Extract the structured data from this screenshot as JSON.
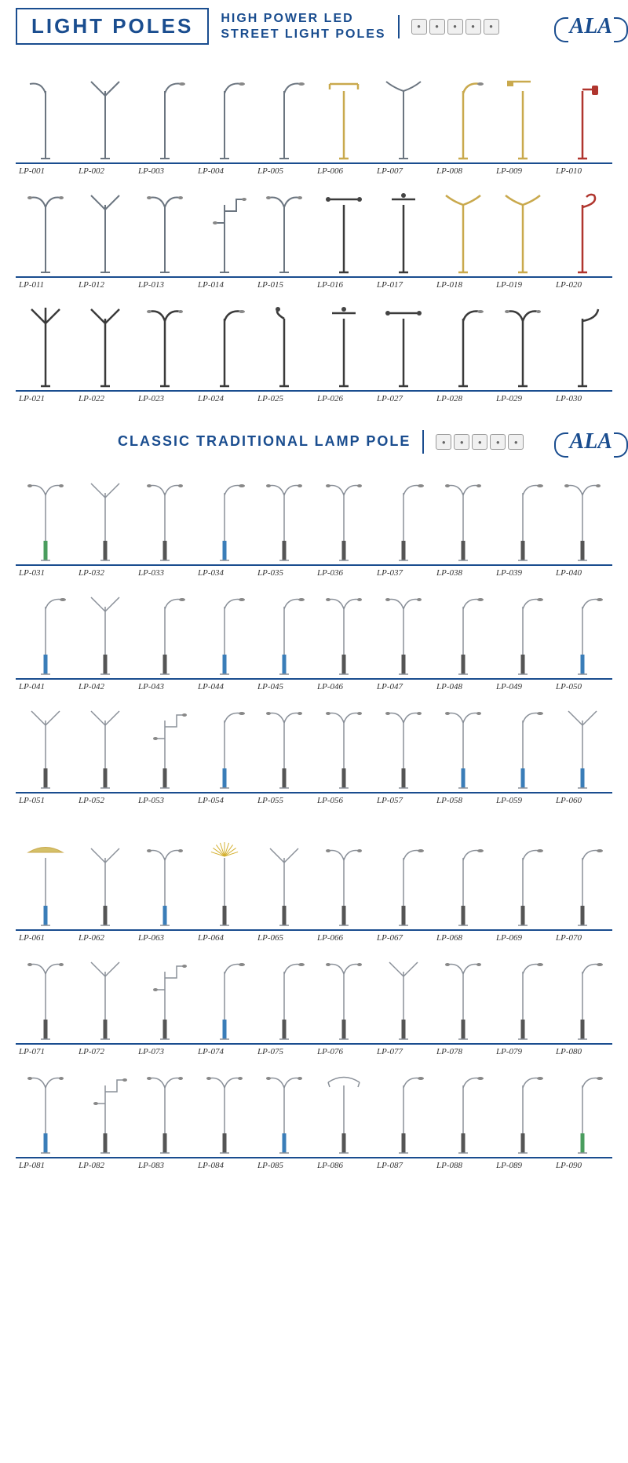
{
  "header": {
    "main_title": "LIGHT POLES",
    "subtitle_line1": "HIGH POWER LED",
    "subtitle_line2": "STREET LIGHT POLES",
    "logo_text": "ALA",
    "badge_count": 5
  },
  "section2": {
    "title": "CLASSIC TRADITIONAL LAMP POLE",
    "logo_text": "ALA",
    "badge_count": 5
  },
  "colors": {
    "primary": "#1a4d8f",
    "pole_grey": "#6b7580",
    "pole_gold": "#c9a94d",
    "pole_red": "#b0352e",
    "pole_dark": "#3a3a3a",
    "base_blue": "#3a7db8",
    "base_green": "#4a9d5e"
  },
  "section1_items": [
    {
      "id": "LP-001",
      "type": "single-curve-l",
      "color": "grey"
    },
    {
      "id": "LP-002",
      "type": "double-y",
      "color": "grey"
    },
    {
      "id": "LP-003",
      "type": "single-arc-r",
      "color": "grey"
    },
    {
      "id": "LP-004",
      "type": "single-arm-r",
      "color": "grey"
    },
    {
      "id": "LP-005",
      "type": "single-curve-r",
      "color": "grey"
    },
    {
      "id": "LP-006",
      "type": "cross-top",
      "color": "gold"
    },
    {
      "id": "LP-007",
      "type": "wing-top",
      "color": "grey"
    },
    {
      "id": "LP-008",
      "type": "single-arc-r",
      "color": "gold"
    },
    {
      "id": "LP-009",
      "type": "flag-top",
      "color": "gold"
    },
    {
      "id": "LP-010",
      "type": "lantern-side",
      "color": "red"
    },
    {
      "id": "LP-011",
      "type": "double-curve",
      "color": "grey"
    },
    {
      "id": "LP-012",
      "type": "double-y",
      "color": "grey"
    },
    {
      "id": "LP-013",
      "type": "double-wing",
      "color": "grey"
    },
    {
      "id": "LP-014",
      "type": "step-arm",
      "color": "grey"
    },
    {
      "id": "LP-015",
      "type": "double-arm",
      "color": "grey"
    },
    {
      "id": "LP-016",
      "type": "double-t",
      "color": "dark"
    },
    {
      "id": "LP-017",
      "type": "ornate-top",
      "color": "dark"
    },
    {
      "id": "LP-018",
      "type": "wing-wide",
      "color": "gold"
    },
    {
      "id": "LP-019",
      "type": "wing-wide",
      "color": "gold"
    },
    {
      "id": "LP-020",
      "type": "dragon-curl",
      "color": "red"
    },
    {
      "id": "LP-021",
      "type": "triple-y",
      "color": "dark"
    },
    {
      "id": "LP-022",
      "type": "double-y",
      "color": "dark"
    },
    {
      "id": "LP-023",
      "type": "double-arc",
      "color": "dark"
    },
    {
      "id": "LP-024",
      "type": "single-arm-r",
      "color": "dark"
    },
    {
      "id": "LP-025",
      "type": "curl-top",
      "color": "dark"
    },
    {
      "id": "LP-026",
      "type": "t-ornate",
      "color": "dark"
    },
    {
      "id": "LP-027",
      "type": "double-t",
      "color": "dark"
    },
    {
      "id": "LP-028",
      "type": "single-arc-r",
      "color": "dark"
    },
    {
      "id": "LP-029",
      "type": "double-arm",
      "color": "dark"
    },
    {
      "id": "LP-030",
      "type": "hook-top",
      "color": "dark"
    }
  ],
  "section2_items": [
    {
      "id": "LP-031",
      "type": "double-lamp",
      "base": "green"
    },
    {
      "id": "LP-032",
      "type": "double-y",
      "base": "grey"
    },
    {
      "id": "LP-033",
      "type": "double-lamp",
      "base": "grey"
    },
    {
      "id": "LP-034",
      "type": "single-lamp-r",
      "base": "blue"
    },
    {
      "id": "LP-035",
      "type": "double-lamp",
      "base": "grey"
    },
    {
      "id": "LP-036",
      "type": "double-arc",
      "base": "grey"
    },
    {
      "id": "LP-037",
      "type": "single-lamp-r",
      "base": "grey"
    },
    {
      "id": "LP-038",
      "type": "double-lamp",
      "base": "grey"
    },
    {
      "id": "LP-039",
      "type": "single-lamp-r",
      "base": "grey"
    },
    {
      "id": "LP-040",
      "type": "double-lamp",
      "base": "grey"
    },
    {
      "id": "LP-041",
      "type": "single-lamp-r",
      "base": "blue"
    },
    {
      "id": "LP-042",
      "type": "double-y",
      "base": "grey"
    },
    {
      "id": "LP-043",
      "type": "single-lamp-r",
      "base": "grey"
    },
    {
      "id": "LP-044",
      "type": "single-lamp-r",
      "base": "blue"
    },
    {
      "id": "LP-045",
      "type": "single-lamp-r",
      "base": "blue"
    },
    {
      "id": "LP-046",
      "type": "double-lamp",
      "base": "grey"
    },
    {
      "id": "LP-047",
      "type": "double-lamp",
      "base": "grey"
    },
    {
      "id": "LP-048",
      "type": "single-lamp-r",
      "base": "grey"
    },
    {
      "id": "LP-049",
      "type": "single-lamp-r",
      "base": "grey"
    },
    {
      "id": "LP-050",
      "type": "single-lamp-r",
      "base": "blue"
    },
    {
      "id": "LP-051",
      "type": "double-y",
      "base": "grey"
    },
    {
      "id": "LP-052",
      "type": "double-y",
      "base": "grey"
    },
    {
      "id": "LP-053",
      "type": "step-arm",
      "base": "grey"
    },
    {
      "id": "LP-054",
      "type": "single-lamp-r",
      "base": "blue"
    },
    {
      "id": "LP-055",
      "type": "double-lamp",
      "base": "grey"
    },
    {
      "id": "LP-056",
      "type": "double-lamp",
      "base": "grey"
    },
    {
      "id": "LP-057",
      "type": "double-lamp",
      "base": "grey"
    },
    {
      "id": "LP-058",
      "type": "double-lamp",
      "base": "blue"
    },
    {
      "id": "LP-059",
      "type": "single-lamp-r",
      "base": "blue"
    },
    {
      "id": "LP-060",
      "type": "double-y",
      "base": "blue"
    },
    {
      "id": "LP-061",
      "type": "fan-top",
      "base": "blue"
    },
    {
      "id": "LP-062",
      "type": "double-y",
      "base": "grey"
    },
    {
      "id": "LP-063",
      "type": "double-lamp",
      "base": "blue"
    },
    {
      "id": "LP-064",
      "type": "burst-top",
      "base": "grey"
    },
    {
      "id": "LP-065",
      "type": "double-y",
      "base": "grey"
    },
    {
      "id": "LP-066",
      "type": "double-lamp",
      "base": "grey"
    },
    {
      "id": "LP-067",
      "type": "single-lamp-r",
      "base": "grey"
    },
    {
      "id": "LP-068",
      "type": "single-lamp-r",
      "base": "grey"
    },
    {
      "id": "LP-069",
      "type": "single-lamp-r",
      "base": "grey"
    },
    {
      "id": "LP-070",
      "type": "single-lamp-r",
      "base": "grey"
    },
    {
      "id": "LP-071",
      "type": "double-lamp",
      "base": "grey"
    },
    {
      "id": "LP-072",
      "type": "double-y",
      "base": "grey"
    },
    {
      "id": "LP-073",
      "type": "step-arm",
      "base": "grey"
    },
    {
      "id": "LP-074",
      "type": "single-lamp-r",
      "base": "blue"
    },
    {
      "id": "LP-075",
      "type": "single-lamp-r",
      "base": "grey"
    },
    {
      "id": "LP-076",
      "type": "double-lamp",
      "base": "grey"
    },
    {
      "id": "LP-077",
      "type": "double-y",
      "base": "grey"
    },
    {
      "id": "LP-078",
      "type": "double-lamp",
      "base": "grey"
    },
    {
      "id": "LP-079",
      "type": "single-lamp-r",
      "base": "grey"
    },
    {
      "id": "LP-080",
      "type": "single-lamp-r",
      "base": "grey"
    },
    {
      "id": "LP-081",
      "type": "double-wing",
      "base": "blue"
    },
    {
      "id": "LP-082",
      "type": "step-arm",
      "base": "grey"
    },
    {
      "id": "LP-083",
      "type": "double-lamp",
      "base": "grey"
    },
    {
      "id": "LP-084",
      "type": "double-lamp",
      "base": "grey"
    },
    {
      "id": "LP-085",
      "type": "double-lamp",
      "base": "blue"
    },
    {
      "id": "LP-086",
      "type": "umbrella",
      "base": "grey"
    },
    {
      "id": "LP-087",
      "type": "single-lamp-r",
      "base": "grey"
    },
    {
      "id": "LP-088",
      "type": "single-lamp-r",
      "base": "grey"
    },
    {
      "id": "LP-089",
      "type": "single-lamp-r",
      "base": "grey"
    },
    {
      "id": "LP-090",
      "type": "single-lamp-r",
      "base": "green"
    }
  ]
}
